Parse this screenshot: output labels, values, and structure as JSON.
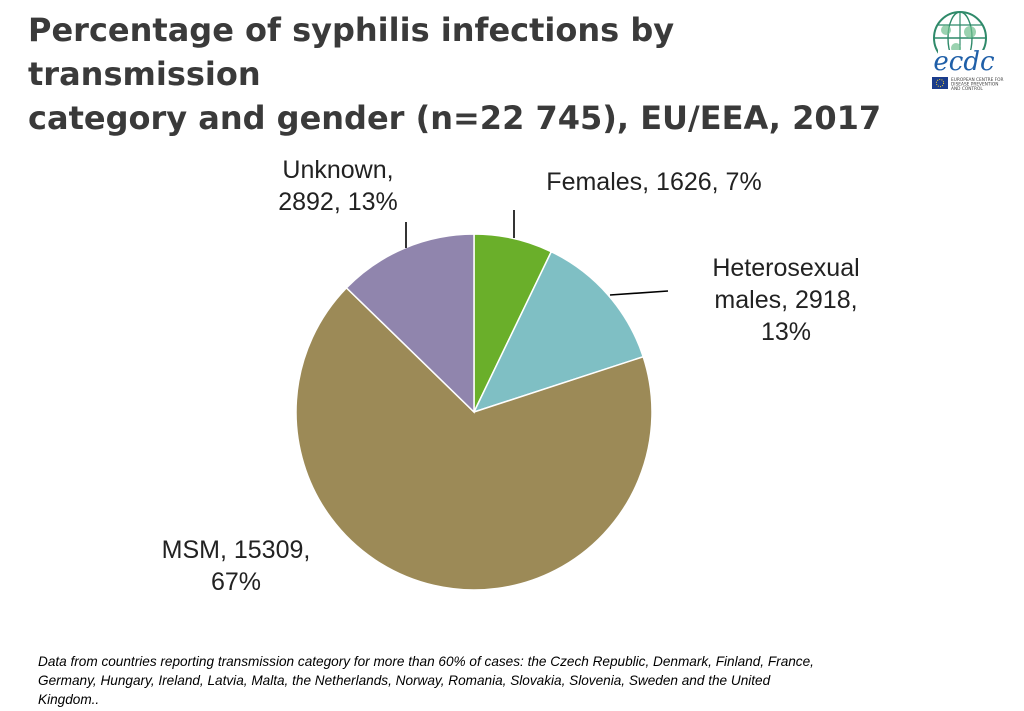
{
  "header": {
    "title_line1": "Percentage of syphilis infections by transmission",
    "title_line2": "category and gender (n=22 745), EU/EEA, 2017"
  },
  "logo": {
    "wordmark": "ecdc",
    "org_line1": "EUROPEAN CENTRE FOR",
    "org_line2": "DISEASE PREVENTION",
    "org_line3": "AND CONTROL",
    "colors": {
      "globe": "#2f8a6a",
      "wordmark": "#1f5fa8",
      "flag": "#1a3c8c"
    }
  },
  "chart_data": {
    "type": "pie",
    "title": "",
    "slices": [
      {
        "name": "Females",
        "value": 1626,
        "percent": 7,
        "color": "#6aaf2a",
        "label_lines": [
          "Females, 1626, 7%"
        ]
      },
      {
        "name": "Heterosexual males",
        "value": 2918,
        "percent": 13,
        "color": "#7fbfc4",
        "label_lines": [
          "Heterosexual",
          "males, 2918,",
          "13%"
        ]
      },
      {
        "name": "MSM",
        "value": 15309,
        "percent": 67,
        "color": "#9c8a57",
        "label_lines": [
          "MSM, 15309,",
          "67%"
        ]
      },
      {
        "name": "Unknown",
        "value": 2892,
        "percent": 13,
        "color": "#9085ad",
        "label_lines": [
          "Unknown,",
          "2892, 13%"
        ]
      }
    ],
    "start_angle": "12 o'clock",
    "direction": "clockwise",
    "legend": "none",
    "data_labels": "outside with leader lines"
  },
  "footnote": {
    "line1": "Data from countries reporting transmission category for more than 60% of cases: the Czech Republic, Denmark, Finland, France,",
    "line2": "Germany, Hungary, Ireland, Latvia, Malta, the Netherlands, Norway, Romania, Slovakia, Slovenia, Sweden and the United",
    "line3": "Kingdom.."
  }
}
